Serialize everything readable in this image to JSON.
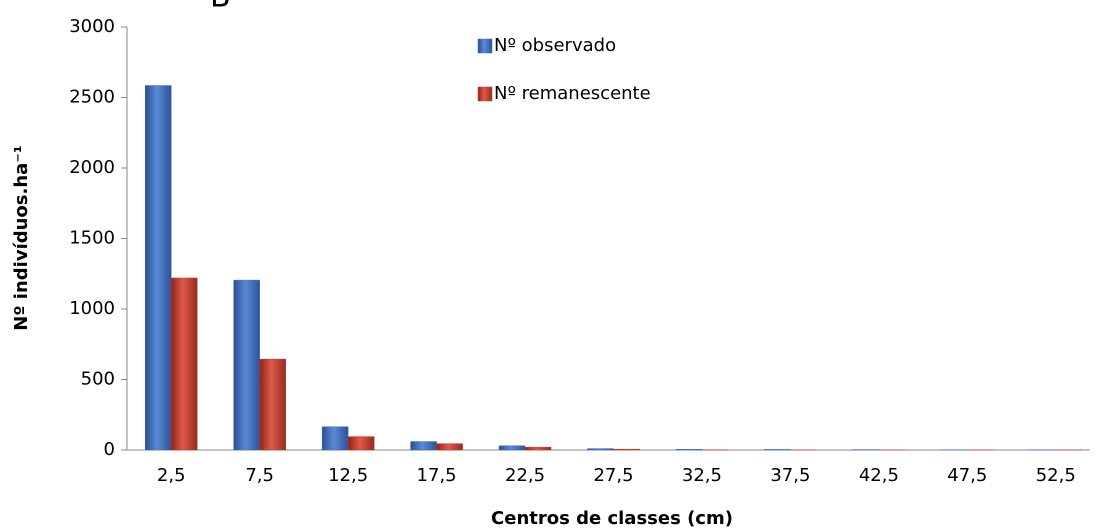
{
  "chart_data": {
    "type": "bar",
    "panel_label": "B",
    "xlabel": "Centros de classes (cm)",
    "ylabel": "Nº indivíduos.ha⁻¹",
    "categories": [
      "2,5",
      "7,5",
      "12,5",
      "17,5",
      "22,5",
      "27,5",
      "32,5",
      "37,5",
      "42,5",
      "47,5",
      "52,5"
    ],
    "series": [
      {
        "name": "Nº observado",
        "color": "#3f6fbf",
        "values": [
          2585,
          1205,
          165,
          60,
          30,
          10,
          5,
          4,
          3,
          2,
          2
        ]
      },
      {
        "name": "Nº remanescente",
        "color": "#c0392b",
        "values": [
          1220,
          645,
          95,
          45,
          20,
          6,
          2,
          1,
          1,
          1,
          1
        ]
      }
    ],
    "ylim": [
      0,
      3000
    ],
    "yticks": [
      0,
      500,
      1000,
      1500,
      2000,
      2500,
      3000
    ],
    "grid": false,
    "legend": "top"
  }
}
